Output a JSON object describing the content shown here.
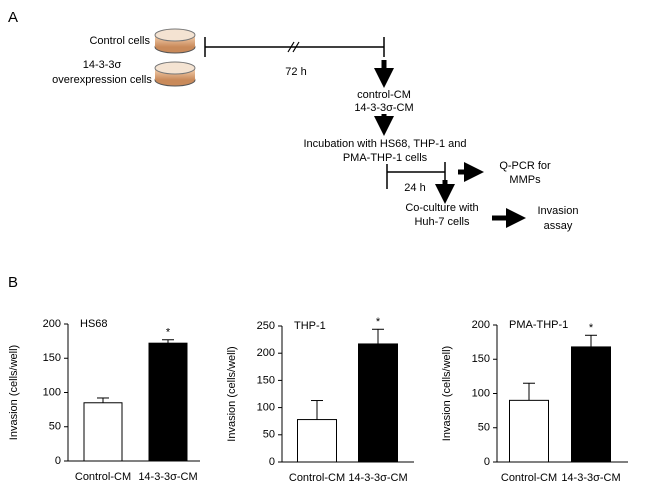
{
  "panels": {
    "a": "A",
    "b": "B"
  },
  "diagram": {
    "control_cells": "Control cells",
    "overexpression_line1": "14-3-3σ",
    "overexpression_line2": "overexpression cells",
    "time1": "72 h",
    "cm_line1": "control-CM",
    "cm_line2": "14-3-3σ-CM",
    "incubation_line1": "Incubation with HS68, THP-1 and",
    "incubation_line2": "PMA-THP-1 cells",
    "time2": "24 h",
    "qpcr_line1": "Q-PCR for",
    "qpcr_line2": "MMPs",
    "coculture_line1": "Co-culture with",
    "coculture_line2": "Huh-7 cells",
    "invasion_line1": "Invasion",
    "invasion_line2": "assay"
  },
  "chart_data": [
    {
      "type": "bar",
      "title": "HS68",
      "y_label": "Invasion (cells/well)",
      "categories": [
        "Control-CM",
        "14-3-3σ-CM"
      ],
      "values": [
        85,
        172
      ],
      "errors": [
        7,
        5
      ],
      "colors": [
        "#ffffff",
        "#000000"
      ],
      "annotation": "*",
      "ylim": [
        0,
        200
      ],
      "yticks": [
        0,
        50,
        100,
        150,
        200
      ]
    },
    {
      "type": "bar",
      "title": "THP-1",
      "y_label": "Invasion (cells/well)",
      "categories": [
        "Control-CM",
        "14-3-3σ-CM"
      ],
      "values": [
        78,
        217
      ],
      "errors": [
        35,
        27
      ],
      "colors": [
        "#ffffff",
        "#000000"
      ],
      "annotation": "*",
      "ylim": [
        0,
        250
      ],
      "yticks": [
        0,
        50,
        100,
        150,
        200,
        250
      ]
    },
    {
      "type": "bar",
      "title": "PMA-THP-1",
      "y_label": "Invasion (cells/well)",
      "categories": [
        "Control-CM",
        "14-3-3σ-CM"
      ],
      "values": [
        90,
        168
      ],
      "errors": [
        25,
        17
      ],
      "colors": [
        "#ffffff",
        "#000000"
      ],
      "annotation": "*",
      "ylim": [
        0,
        200
      ],
      "yticks": [
        0,
        50,
        100,
        150,
        200
      ]
    }
  ]
}
